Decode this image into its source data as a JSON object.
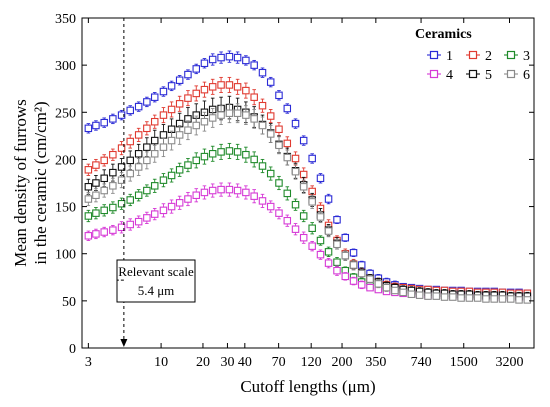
{
  "chart_data": {
    "type": "scatter",
    "xlabel": "Cutoff lengths (μm)",
    "ylabel_lines": [
      "Mean density of furrows",
      "in the ceramic (cm/cm²)"
    ],
    "ylim": [
      0,
      350
    ],
    "y_ticks": [
      0,
      50,
      100,
      150,
      200,
      250,
      300,
      350
    ],
    "x_scale": "log",
    "x_ticks": [
      3,
      10,
      20,
      30,
      40,
      70,
      120,
      200,
      350,
      740,
      1500,
      3200
    ],
    "x_tick_labels": [
      "3",
      "10",
      "20",
      "30",
      "40",
      "70",
      "120",
      "200",
      "350",
      "740",
      "1500",
      "3200"
    ],
    "xlim": [
      2.7,
      4800
    ],
    "legend": {
      "title": "Ceramics",
      "placement": "top-right",
      "entries": [
        "1",
        "2",
        "3",
        "4",
        "5",
        "6"
      ]
    },
    "annotation": {
      "line1": "Relevant scale",
      "line2": "5.4 μm",
      "x_value": 5.4
    },
    "x": [
      3,
      3.4,
      3.9,
      4.5,
      5.2,
      6,
      6.9,
      7.9,
      9,
      10.4,
      11.9,
      13.6,
      15.6,
      17.9,
      20.5,
      23.5,
      27,
      31,
      35.5,
      40.7,
      46.7,
      53.6,
      61.4,
      70.4,
      80.8,
      92.6,
      106,
      122,
      140,
      160,
      184,
      211,
      242,
      277,
      318,
      365,
      418,
      480,
      550,
      631,
      723,
      830,
      952,
      1092,
      1252,
      1436,
      1647,
      1889,
      2166,
      2484,
      2849,
      3267,
      3747,
      4297
    ],
    "series": [
      {
        "name": "1",
        "color": "#2b2bd6",
        "values": [
          233,
          236,
          239,
          243,
          247,
          252,
          256,
          261,
          266,
          272,
          278,
          284,
          290,
          296,
          302,
          306,
          308,
          309,
          308,
          305,
          300,
          292,
          282,
          268,
          254,
          238,
          220,
          201,
          180,
          158,
          136,
          117,
          101,
          88,
          79,
          74,
          70,
          67,
          65,
          64,
          63,
          62,
          62,
          61,
          61,
          61,
          60,
          60,
          60,
          60,
          59,
          59,
          59,
          58
        ],
        "errors": [
          5,
          5,
          5,
          5,
          5,
          5,
          5,
          5,
          5,
          5,
          5,
          5,
          5,
          5,
          5,
          6,
          6,
          6,
          6,
          5,
          5,
          5,
          5,
          5,
          5,
          5,
          5,
          5,
          5,
          5,
          4,
          4,
          4,
          4,
          4,
          4,
          4,
          4,
          3,
          3,
          3,
          3,
          3,
          3,
          3,
          3,
          3,
          3,
          3,
          3,
          3,
          3,
          3,
          3
        ]
      },
      {
        "name": "2",
        "color": "#e03a30",
        "values": [
          189,
          194,
          199,
          205,
          212,
          219,
          226,
          233,
          240,
          247,
          253,
          259,
          265,
          270,
          274,
          277,
          279,
          279,
          277,
          273,
          266,
          257,
          246,
          232,
          217,
          201,
          184,
          166,
          148,
          130,
          114,
          100,
          89,
          80,
          74,
          70,
          67,
          65,
          64,
          63,
          62,
          62,
          61,
          61,
          60,
          60,
          60,
          59,
          59,
          59,
          59,
          58,
          58,
          58
        ],
        "errors": [
          6,
          6,
          6,
          6,
          7,
          7,
          7,
          7,
          7,
          8,
          8,
          8,
          8,
          8,
          8,
          8,
          8,
          8,
          8,
          8,
          8,
          7,
          7,
          7,
          7,
          7,
          7,
          6,
          6,
          6,
          5,
          5,
          5,
          4,
          4,
          4,
          4,
          4,
          3,
          3,
          3,
          3,
          3,
          3,
          3,
          3,
          3,
          3,
          3,
          3,
          3,
          3,
          3,
          3
        ]
      },
      {
        "name": "3",
        "color": "#1f8a2a",
        "values": [
          140,
          143,
          146,
          149,
          153,
          157,
          162,
          167,
          172,
          178,
          183,
          189,
          194,
          199,
          203,
          206,
          208,
          209,
          208,
          205,
          200,
          193,
          185,
          175,
          164,
          152,
          140,
          127,
          114,
          102,
          91,
          82,
          75,
          70,
          66,
          63,
          61,
          60,
          59,
          58,
          57,
          57,
          56,
          56,
          56,
          55,
          55,
          55,
          55,
          55,
          54,
          54,
          54,
          54
        ],
        "errors": [
          6,
          6,
          6,
          6,
          6,
          6,
          6,
          6,
          7,
          7,
          7,
          7,
          7,
          8,
          8,
          8,
          8,
          8,
          8,
          8,
          8,
          7,
          7,
          7,
          7,
          6,
          6,
          6,
          5,
          5,
          5,
          4,
          4,
          4,
          4,
          3,
          3,
          3,
          3,
          3,
          3,
          3,
          3,
          3,
          3,
          3,
          3,
          3,
          3,
          3,
          3,
          3,
          3,
          3
        ]
      },
      {
        "name": "4",
        "color": "#d63ad6",
        "values": [
          119,
          121,
          123,
          125,
          128,
          131,
          134,
          138,
          142,
          146,
          150,
          154,
          158,
          162,
          165,
          167,
          168,
          168,
          167,
          165,
          161,
          156,
          150,
          143,
          135,
          126,
          117,
          108,
          99,
          90,
          82,
          76,
          71,
          67,
          64,
          62,
          60,
          59,
          58,
          57,
          57,
          56,
          56,
          56,
          55,
          55,
          55,
          55,
          55,
          54,
          54,
          54,
          54,
          54
        ],
        "errors": [
          5,
          5,
          5,
          5,
          6,
          6,
          6,
          6,
          6,
          7,
          7,
          7,
          7,
          7,
          7,
          7,
          7,
          7,
          7,
          7,
          7,
          7,
          6,
          6,
          6,
          6,
          6,
          5,
          5,
          5,
          5,
          4,
          4,
          4,
          3,
          3,
          3,
          3,
          3,
          3,
          3,
          3,
          3,
          3,
          3,
          3,
          3,
          3,
          3,
          3,
          3,
          3,
          3,
          3
        ]
      },
      {
        "name": "5",
        "color": "#111111",
        "values": [
          171,
          175,
          180,
          186,
          192,
          199,
          206,
          213,
          220,
          226,
          232,
          238,
          243,
          247,
          250,
          253,
          254,
          255,
          253,
          250,
          245,
          237,
          228,
          216,
          203,
          188,
          173,
          157,
          141,
          125,
          111,
          98,
          88,
          80,
          74,
          70,
          66,
          64,
          62,
          61,
          60,
          59,
          58,
          58,
          57,
          57,
          57,
          56,
          56,
          56,
          56,
          55,
          55,
          55
        ],
        "errors": [
          8,
          8,
          9,
          9,
          9,
          10,
          10,
          10,
          11,
          11,
          11,
          11,
          12,
          12,
          12,
          12,
          12,
          12,
          12,
          11,
          11,
          10,
          10,
          9,
          9,
          8,
          8,
          7,
          7,
          6,
          6,
          5,
          5,
          5,
          4,
          4,
          4,
          4,
          4,
          4,
          4,
          4,
          4,
          4,
          4,
          4,
          4,
          4,
          4,
          4,
          4,
          4,
          4,
          4
        ]
      },
      {
        "name": "6",
        "color": "#8a8a8a",
        "values": [
          158,
          162,
          167,
          172,
          178,
          185,
          192,
          199,
          206,
          213,
          220,
          226,
          231,
          236,
          240,
          244,
          247,
          249,
          249,
          247,
          243,
          236,
          227,
          215,
          202,
          187,
          171,
          155,
          139,
          124,
          110,
          98,
          88,
          79,
          73,
          68,
          64,
          61,
          59,
          57,
          56,
          55,
          55,
          54,
          54,
          53,
          53,
          53,
          52,
          52,
          52,
          52,
          51,
          51
        ],
        "errors": [
          7,
          7,
          7,
          8,
          8,
          8,
          9,
          9,
          9,
          10,
          10,
          10,
          10,
          10,
          10,
          10,
          10,
          10,
          10,
          10,
          10,
          9,
          9,
          9,
          8,
          8,
          7,
          7,
          6,
          6,
          5,
          5,
          5,
          4,
          4,
          4,
          4,
          3,
          3,
          3,
          3,
          3,
          3,
          3,
          3,
          3,
          3,
          3,
          3,
          3,
          3,
          3,
          3,
          3
        ]
      }
    ]
  }
}
